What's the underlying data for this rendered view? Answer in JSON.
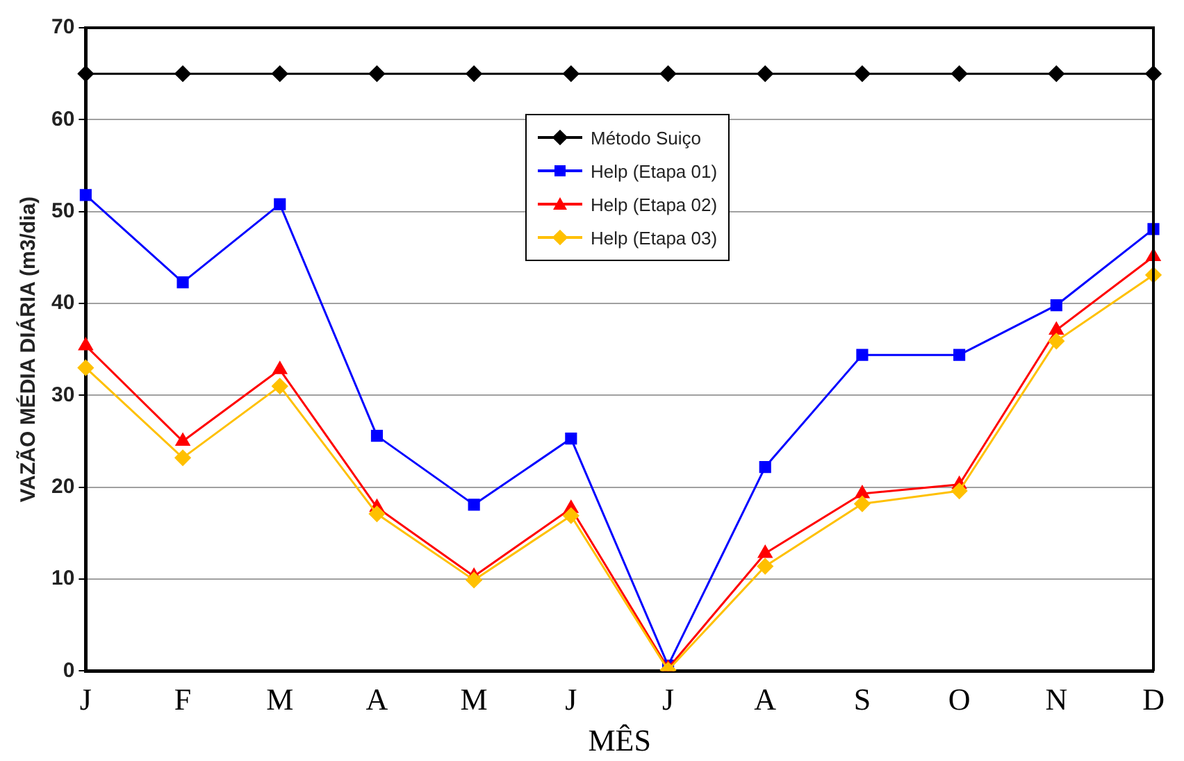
{
  "chart_data": {
    "type": "line",
    "xlabel": "MÊS",
    "ylabel": "VAZÃO MÉDIA DIÁRIA (m3/dia)",
    "categories": [
      "J",
      "F",
      "M",
      "A",
      "M",
      "J",
      "J",
      "A",
      "S",
      "O",
      "N",
      "D"
    ],
    "ylim": [
      0,
      70
    ],
    "yticks": [
      0,
      10,
      20,
      30,
      40,
      50,
      60,
      70
    ],
    "grid": "y",
    "legend": "top",
    "line_style": "solid",
    "series": [
      {
        "name": "Método Suiço",
        "color": "#000000",
        "marker": "diamond",
        "values": [
          65,
          65,
          65,
          65,
          65,
          65,
          65,
          65,
          65,
          65,
          65,
          65
        ]
      },
      {
        "name": "Help (Etapa 01)",
        "color": "#0000ff",
        "marker": "square",
        "values": [
          51.8,
          42.3,
          50.8,
          25.6,
          18.1,
          25.3,
          0.6,
          22.2,
          34.4,
          34.4,
          39.8,
          48.1
        ]
      },
      {
        "name": "Help (Etapa 02)",
        "color": "#ff0000",
        "marker": "triangle",
        "values": [
          35.4,
          25.0,
          32.8,
          17.8,
          10.3,
          17.7,
          0.3,
          12.8,
          19.3,
          20.3,
          37.1,
          45.1
        ]
      },
      {
        "name": "Help (Etapa 03)",
        "color": "#ffc000",
        "marker": "diamond",
        "values": [
          33.0,
          23.2,
          31.0,
          17.1,
          9.9,
          16.9,
          0.1,
          11.4,
          18.2,
          19.6,
          35.9,
          43.1
        ]
      }
    ]
  }
}
